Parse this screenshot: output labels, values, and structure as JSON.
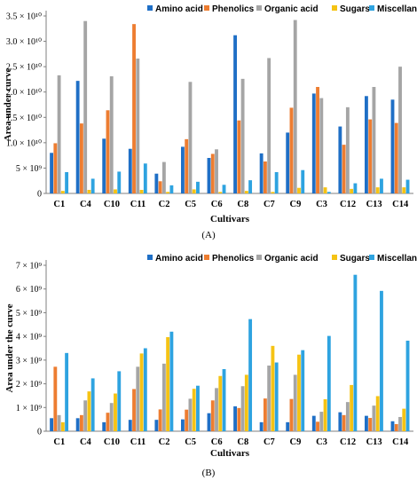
{
  "chart_data": [
    {
      "type": "bar",
      "panel_label": "(A)",
      "xlabel": "Cultivars",
      "ylabel": "Area under curve",
      "ylim": [
        0,
        35000000000
      ],
      "ytick_values": [
        0,
        5000000000,
        10000000000,
        15000000000,
        20000000000,
        25000000000,
        30000000000,
        35000000000
      ],
      "ytick_labels": [
        "0",
        "5 × 10⁹",
        "1.0 × 10¹⁰",
        "1.5 × 10¹⁰",
        "2.0 × 10¹⁰",
        "2.5 × 10¹⁰",
        "3.0 × 10¹⁰",
        "3.5 × 10¹⁰"
      ],
      "grid": false,
      "legend_position": "top-right",
      "categories": [
        "C1",
        "C4",
        "C10",
        "C11",
        "C2",
        "C5",
        "C6",
        "C8",
        "C7",
        "C9",
        "C3",
        "C12",
        "C13",
        "C14"
      ],
      "series": [
        {
          "name": "Amino acid",
          "color": "#1F6FC6",
          "values": [
            8000000000,
            22200000000,
            10800000000,
            8800000000,
            3900000000,
            9200000000,
            7000000000,
            31200000000,
            7900000000,
            12000000000,
            19700000000,
            13200000000,
            19200000000,
            18500000000
          ]
        },
        {
          "name": "Phenolics",
          "color": "#ED7D31",
          "values": [
            9900000000,
            13800000000,
            16400000000,
            33400000000,
            2400000000,
            10700000000,
            7800000000,
            14400000000,
            6300000000,
            16900000000,
            21000000000,
            9600000000,
            14600000000,
            13900000000
          ]
        },
        {
          "name": "Organic acid",
          "color": "#A5A5A5",
          "values": [
            23300000000,
            34000000000,
            23100000000,
            26600000000,
            6200000000,
            22000000000,
            8700000000,
            22600000000,
            26700000000,
            34200000000,
            18800000000,
            17000000000,
            21000000000,
            25000000000
          ]
        },
        {
          "name": "Sugars",
          "color": "#F5C314",
          "values": [
            500000000,
            700000000,
            800000000,
            700000000,
            300000000,
            800000000,
            300000000,
            500000000,
            300000000,
            1100000000,
            1200000000,
            900000000,
            1200000000,
            1200000000
          ]
        },
        {
          "name": "Miscellaneous",
          "color": "#2EA3E0",
          "values": [
            4200000000,
            2900000000,
            4300000000,
            5900000000,
            1600000000,
            2300000000,
            1700000000,
            2600000000,
            4200000000,
            4600000000,
            300000000,
            2000000000,
            2900000000,
            2700000000
          ]
        }
      ]
    },
    {
      "type": "bar",
      "panel_label": "(B)",
      "xlabel": "Cultivars",
      "ylabel": "Area under the curve",
      "ylim": [
        0,
        7000000000
      ],
      "ytick_values": [
        0,
        1000000000,
        2000000000,
        3000000000,
        4000000000,
        5000000000,
        6000000000,
        7000000000
      ],
      "ytick_labels": [
        "0",
        "1 × 10⁹",
        "2 × 10⁹",
        "3 × 10⁹",
        "4 × 10⁹",
        "5 × 10⁹",
        "6 × 10⁹",
        "7 × 10⁹"
      ],
      "grid": false,
      "legend_position": "top-right",
      "categories": [
        "C1",
        "C4",
        "C10",
        "C11",
        "C2",
        "C5",
        "C6",
        "C8",
        "C7",
        "C9",
        "C3",
        "C12",
        "C13",
        "C14"
      ],
      "series": [
        {
          "name": "Amino acid",
          "color": "#1F6FC6",
          "values": [
            550000000,
            550000000,
            380000000,
            480000000,
            480000000,
            500000000,
            760000000,
            1050000000,
            380000000,
            380000000,
            650000000,
            800000000,
            650000000,
            420000000
          ]
        },
        {
          "name": "Phenolics",
          "color": "#ED7D31",
          "values": [
            2720000000,
            680000000,
            780000000,
            1780000000,
            920000000,
            910000000,
            1300000000,
            980000000,
            1380000000,
            1360000000,
            400000000,
            680000000,
            560000000,
            300000000
          ]
        },
        {
          "name": "Organic acid",
          "color": "#A5A5A5",
          "values": [
            680000000,
            1300000000,
            1190000000,
            2720000000,
            2850000000,
            1370000000,
            1820000000,
            1900000000,
            2770000000,
            2380000000,
            820000000,
            1230000000,
            1080000000,
            600000000
          ]
        },
        {
          "name": "Sugars",
          "color": "#F5C314",
          "values": [
            380000000,
            1680000000,
            1590000000,
            3280000000,
            3970000000,
            1790000000,
            2330000000,
            2380000000,
            3600000000,
            3230000000,
            1350000000,
            1950000000,
            1480000000,
            950000000
          ]
        },
        {
          "name": "Miscellaneous",
          "color": "#2EA3E0",
          "values": [
            3300000000,
            2230000000,
            2530000000,
            3500000000,
            4200000000,
            1920000000,
            2620000000,
            4730000000,
            2900000000,
            3420000000,
            4020000000,
            6600000000,
            5920000000,
            3820000000
          ]
        }
      ]
    }
  ]
}
